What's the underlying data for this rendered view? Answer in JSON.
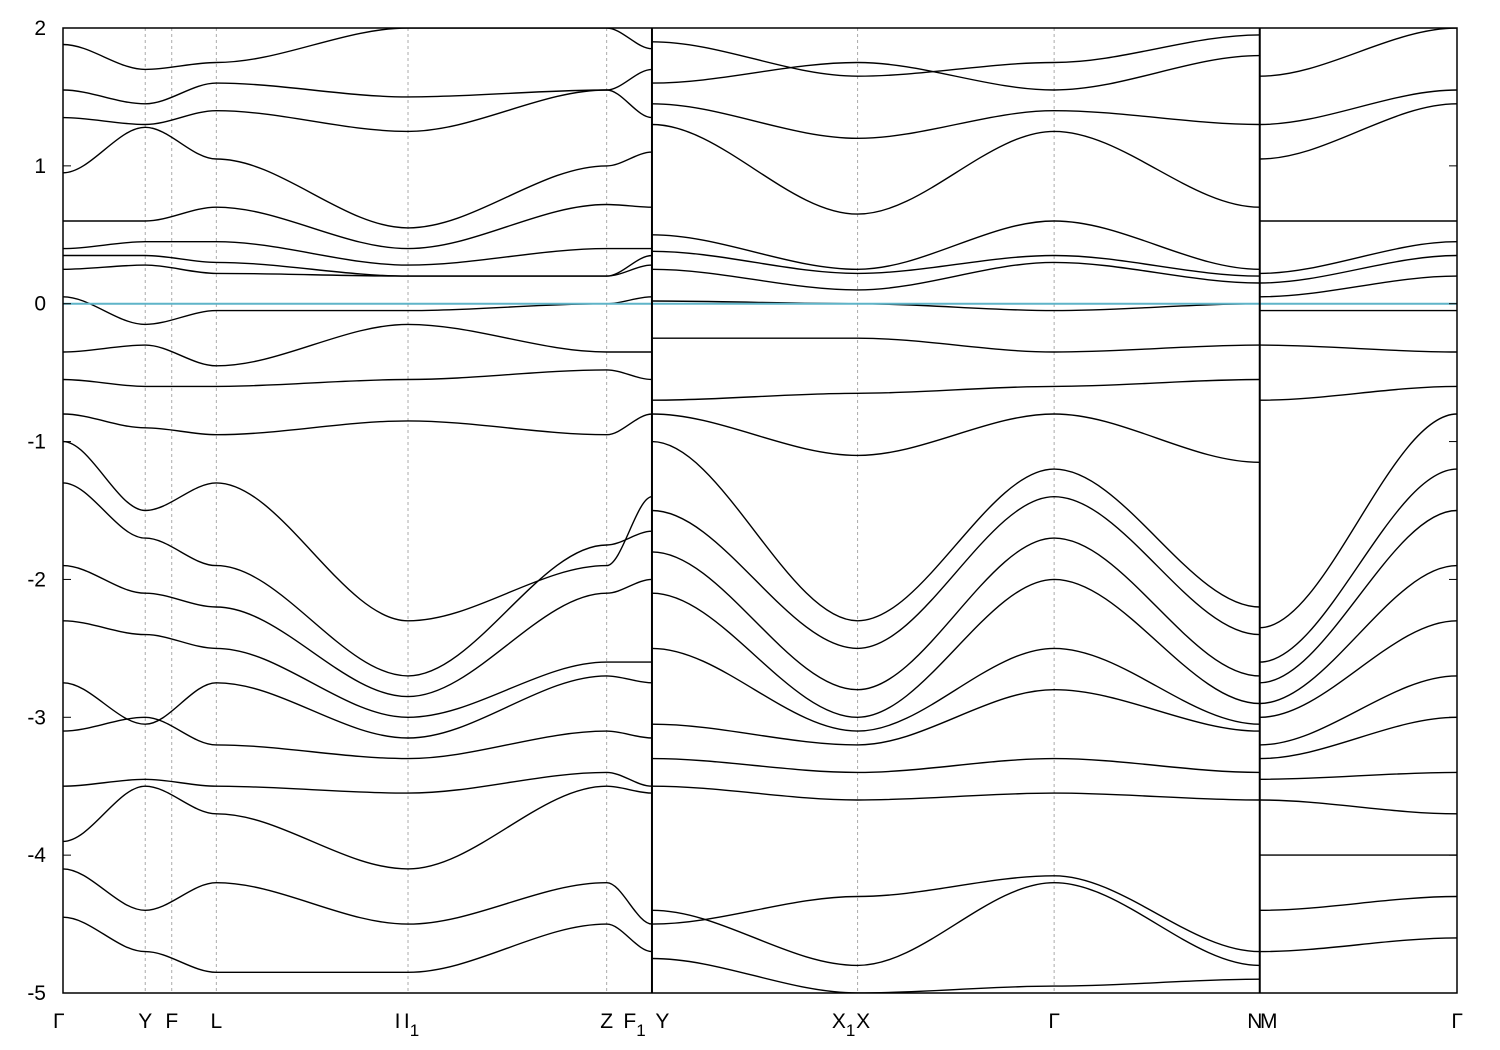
{
  "chart_data": {
    "type": "line",
    "title": "",
    "xlabel": "",
    "ylabel": "",
    "ylim": [
      -5,
      2
    ],
    "yticks": [
      {
        "value": 2,
        "label": "2"
      },
      {
        "value": 1,
        "label": "1"
      },
      {
        "value": 0,
        "label": "0"
      },
      {
        "value": -1,
        "label": "-1"
      },
      {
        "value": -2,
        "label": "-2"
      },
      {
        "value": -3,
        "label": "-3"
      },
      {
        "value": -4,
        "label": "-4"
      },
      {
        "value": -5,
        "label": "-5"
      }
    ],
    "kpath_labels": [
      {
        "label": "Γ",
        "sub": "",
        "k": 0.0
      },
      {
        "label": "Y",
        "sub": "",
        "k": 0.059
      },
      {
        "label": "F",
        "sub": "",
        "k": 0.078
      },
      {
        "label": "L",
        "sub": "",
        "k": 0.11
      },
      {
        "label": "I",
        "sub": "",
        "k": 0.24
      },
      {
        "label": "I",
        "sub": "1",
        "k": 0.25
      },
      {
        "label": "Z",
        "sub": "",
        "k": 0.39
      },
      {
        "label": "F",
        "sub": "1",
        "k": 0.41
      },
      {
        "label": "Y",
        "sub": "",
        "k": 0.43
      },
      {
        "label": "X",
        "sub": "1",
        "k": 0.56
      },
      {
        "label": "X",
        "sub": "",
        "k": 0.574
      },
      {
        "label": "Γ",
        "sub": "",
        "k": 0.711
      },
      {
        "label": "N",
        "sub": "",
        "k": 0.855
      },
      {
        "label": "M",
        "sub": "",
        "k": 0.865
      },
      {
        "label": "Γ",
        "sub": "",
        "k": 1.0
      }
    ],
    "path_breaks_k": [
      0.4225,
      0.8585
    ],
    "grid_k": [
      0.059,
      0.078,
      0.11,
      0.2475,
      0.39,
      0.57,
      0.711
    ],
    "fermi_level": 0,
    "colors": {
      "bands": "#000000",
      "fermi": "#5fb4c8",
      "grid": "#aaaaaa"
    },
    "series": [
      {
        "k": [
          0.0,
          0.059,
          0.11,
          0.2475,
          0.39,
          0.4225
        ],
        "values": [
          1.88,
          1.7,
          1.75,
          2.0,
          2.0,
          1.85
        ]
      },
      {
        "k": [
          0.0,
          0.059,
          0.11,
          0.2475,
          0.39,
          0.4225
        ],
        "values": [
          1.55,
          1.45,
          1.6,
          1.5,
          1.55,
          1.7
        ]
      },
      {
        "k": [
          0.0,
          0.059,
          0.11,
          0.2475,
          0.39,
          0.4225
        ],
        "values": [
          1.35,
          1.3,
          1.4,
          1.25,
          1.55,
          1.35
        ]
      },
      {
        "k": [
          0.0,
          0.059,
          0.11,
          0.2475,
          0.39,
          0.4225
        ],
        "values": [
          0.95,
          1.28,
          1.05,
          0.55,
          1.0,
          1.1
        ]
      },
      {
        "k": [
          0.0,
          0.059,
          0.11,
          0.2475,
          0.39,
          0.4225
        ],
        "values": [
          0.6,
          0.6,
          0.7,
          0.4,
          0.72,
          0.7
        ]
      },
      {
        "k": [
          0.0,
          0.059,
          0.11,
          0.2475,
          0.39,
          0.4225
        ],
        "values": [
          0.4,
          0.45,
          0.45,
          0.28,
          0.4,
          0.4
        ]
      },
      {
        "k": [
          0.0,
          0.059,
          0.11,
          0.2475,
          0.39,
          0.4225
        ],
        "values": [
          0.35,
          0.35,
          0.3,
          0.2,
          0.2,
          0.35
        ]
      },
      {
        "k": [
          0.0,
          0.059,
          0.11,
          0.2475,
          0.39,
          0.4225
        ],
        "values": [
          0.25,
          0.28,
          0.22,
          0.2,
          0.2,
          0.28
        ]
      },
      {
        "k": [
          0.0,
          0.059,
          0.11,
          0.2475,
          0.39,
          0.4225
        ],
        "values": [
          0.05,
          -0.15,
          -0.05,
          -0.05,
          0.0,
          0.05
        ]
      },
      {
        "k": [
          0.0,
          0.059,
          0.11,
          0.2475,
          0.39,
          0.4225
        ],
        "values": [
          -0.35,
          -0.3,
          -0.45,
          -0.15,
          -0.35,
          -0.35
        ]
      },
      {
        "k": [
          0.0,
          0.059,
          0.11,
          0.2475,
          0.39,
          0.4225
        ],
        "values": [
          -0.55,
          -0.6,
          -0.6,
          -0.55,
          -0.48,
          -0.55
        ]
      },
      {
        "k": [
          0.0,
          0.059,
          0.11,
          0.2475,
          0.39,
          0.4225
        ],
        "values": [
          -0.8,
          -0.9,
          -0.95,
          -0.85,
          -0.95,
          -0.8
        ]
      },
      {
        "k": [
          0.0,
          0.059,
          0.11,
          0.2475,
          0.39,
          0.4225
        ],
        "values": [
          -1.0,
          -1.5,
          -1.3,
          -2.3,
          -1.9,
          -1.4
        ]
      },
      {
        "k": [
          0.0,
          0.059,
          0.11,
          0.2475,
          0.39,
          0.4225
        ],
        "values": [
          -1.3,
          -1.7,
          -1.9,
          -2.7,
          -1.75,
          -1.65
        ]
      },
      {
        "k": [
          0.0,
          0.059,
          0.11,
          0.2475,
          0.39,
          0.4225
        ],
        "values": [
          -1.9,
          -2.1,
          -2.2,
          -2.85,
          -2.1,
          -2.0
        ]
      },
      {
        "k": [
          0.0,
          0.059,
          0.11,
          0.2475,
          0.39,
          0.4225
        ],
        "values": [
          -2.3,
          -2.4,
          -2.5,
          -3.0,
          -2.6,
          -2.6
        ]
      },
      {
        "k": [
          0.0,
          0.059,
          0.11,
          0.2475,
          0.39,
          0.4225
        ],
        "values": [
          -2.75,
          -3.05,
          -2.75,
          -3.15,
          -2.7,
          -2.75
        ]
      },
      {
        "k": [
          0.0,
          0.059,
          0.11,
          0.2475,
          0.39,
          0.4225
        ],
        "values": [
          -3.1,
          -3.0,
          -3.2,
          -3.3,
          -3.1,
          -3.15
        ]
      },
      {
        "k": [
          0.0,
          0.059,
          0.11,
          0.2475,
          0.39,
          0.4225
        ],
        "values": [
          -3.5,
          -3.45,
          -3.5,
          -3.55,
          -3.4,
          -3.5
        ]
      },
      {
        "k": [
          0.0,
          0.059,
          0.11,
          0.2475,
          0.39,
          0.4225
        ],
        "values": [
          -3.9,
          -3.5,
          -3.7,
          -4.1,
          -3.5,
          -3.55
        ]
      },
      {
        "k": [
          0.0,
          0.059,
          0.11,
          0.2475,
          0.39,
          0.4225
        ],
        "values": [
          -4.1,
          -4.4,
          -4.2,
          -4.5,
          -4.2,
          -4.5
        ]
      },
      {
        "k": [
          0.0,
          0.059,
          0.11,
          0.2475,
          0.39,
          0.4225
        ],
        "values": [
          -4.45,
          -4.7,
          -4.85,
          -4.85,
          -4.5,
          -4.7
        ]
      },
      {
        "k": [
          0.4225,
          0.57,
          0.711,
          0.8585
        ],
        "values": [
          1.9,
          1.65,
          1.75,
          1.95
        ]
      },
      {
        "k": [
          0.4225,
          0.57,
          0.711,
          0.8585
        ],
        "values": [
          1.6,
          1.75,
          1.55,
          1.8
        ]
      },
      {
        "k": [
          0.4225,
          0.57,
          0.711,
          0.8585
        ],
        "values": [
          1.45,
          1.2,
          1.4,
          1.3
        ]
      },
      {
        "k": [
          0.4225,
          0.57,
          0.711,
          0.8585
        ],
        "values": [
          1.3,
          0.65,
          1.25,
          0.7
        ]
      },
      {
        "k": [
          0.4225,
          0.57,
          0.711,
          0.8585
        ],
        "values": [
          0.5,
          0.25,
          0.6,
          0.25
        ]
      },
      {
        "k": [
          0.4225,
          0.57,
          0.711,
          0.8585
        ],
        "values": [
          0.38,
          0.22,
          0.35,
          0.2
        ]
      },
      {
        "k": [
          0.4225,
          0.57,
          0.711,
          0.8585
        ],
        "values": [
          0.25,
          0.1,
          0.3,
          0.15
        ]
      },
      {
        "k": [
          0.4225,
          0.57,
          0.711,
          0.8585
        ],
        "values": [
          0.02,
          0.0,
          -0.05,
          0.0
        ]
      },
      {
        "k": [
          0.4225,
          0.57,
          0.711,
          0.8585
        ],
        "values": [
          -0.25,
          -0.25,
          -0.35,
          -0.3
        ]
      },
      {
        "k": [
          0.4225,
          0.57,
          0.711,
          0.8585
        ],
        "values": [
          -0.7,
          -0.65,
          -0.6,
          -0.55
        ]
      },
      {
        "k": [
          0.4225,
          0.57,
          0.711,
          0.8585
        ],
        "values": [
          -0.8,
          -1.1,
          -0.8,
          -1.15
        ]
      },
      {
        "k": [
          0.4225,
          0.57,
          0.711,
          0.8585
        ],
        "values": [
          -1.0,
          -2.3,
          -1.2,
          -2.2
        ]
      },
      {
        "k": [
          0.4225,
          0.57,
          0.711,
          0.8585
        ],
        "values": [
          -1.5,
          -2.5,
          -1.4,
          -2.4
        ]
      },
      {
        "k": [
          0.4225,
          0.57,
          0.711,
          0.8585
        ],
        "values": [
          -1.8,
          -2.8,
          -1.7,
          -2.7
        ]
      },
      {
        "k": [
          0.4225,
          0.57,
          0.711,
          0.8585
        ],
        "values": [
          -2.1,
          -3.0,
          -2.0,
          -2.9
        ]
      },
      {
        "k": [
          0.4225,
          0.57,
          0.711,
          0.8585
        ],
        "values": [
          -2.5,
          -3.1,
          -2.5,
          -3.05
        ]
      },
      {
        "k": [
          0.4225,
          0.57,
          0.711,
          0.8585
        ],
        "values": [
          -3.05,
          -3.2,
          -2.8,
          -3.1
        ]
      },
      {
        "k": [
          0.4225,
          0.57,
          0.711,
          0.8585
        ],
        "values": [
          -3.3,
          -3.4,
          -3.3,
          -3.4
        ]
      },
      {
        "k": [
          0.4225,
          0.57,
          0.711,
          0.8585
        ],
        "values": [
          -3.5,
          -3.6,
          -3.55,
          -3.6
        ]
      },
      {
        "k": [
          0.4225,
          0.57,
          0.711,
          0.8585
        ],
        "values": [
          -4.5,
          -4.3,
          -4.15,
          -4.7
        ]
      },
      {
        "k": [
          0.4225,
          0.57,
          0.711,
          0.8585
        ],
        "values": [
          -4.4,
          -4.8,
          -4.2,
          -4.8
        ]
      },
      {
        "k": [
          0.4225,
          0.57,
          0.711,
          0.8585
        ],
        "values": [
          -4.75,
          -5.0,
          -4.95,
          -4.9
        ]
      },
      {
        "k": [
          0.8585,
          1.0
        ],
        "values": [
          1.65,
          2.0
        ]
      },
      {
        "k": [
          0.8585,
          1.0
        ],
        "values": [
          1.3,
          1.55
        ]
      },
      {
        "k": [
          0.8585,
          1.0
        ],
        "values": [
          1.05,
          1.45
        ]
      },
      {
        "k": [
          0.8585,
          1.0
        ],
        "values": [
          0.6,
          0.6
        ]
      },
      {
        "k": [
          0.8585,
          1.0
        ],
        "values": [
          0.22,
          0.45
        ]
      },
      {
        "k": [
          0.8585,
          1.0
        ],
        "values": [
          0.15,
          0.35
        ]
      },
      {
        "k": [
          0.8585,
          1.0
        ],
        "values": [
          0.05,
          0.2
        ]
      },
      {
        "k": [
          0.8585,
          1.0
        ],
        "values": [
          -0.05,
          -0.05
        ]
      },
      {
        "k": [
          0.8585,
          1.0
        ],
        "values": [
          -0.3,
          -0.35
        ]
      },
      {
        "k": [
          0.8585,
          1.0
        ],
        "values": [
          -0.7,
          -0.6
        ]
      },
      {
        "k": [
          0.8585,
          1.0
        ],
        "values": [
          -2.35,
          -0.8
        ]
      },
      {
        "k": [
          0.8585,
          1.0
        ],
        "values": [
          -2.6,
          -1.2
        ]
      },
      {
        "k": [
          0.8585,
          1.0
        ],
        "values": [
          -2.75,
          -1.5
        ]
      },
      {
        "k": [
          0.8585,
          1.0
        ],
        "values": [
          -2.9,
          -1.9
        ]
      },
      {
        "k": [
          0.8585,
          1.0
        ],
        "values": [
          -3.0,
          -2.3
        ]
      },
      {
        "k": [
          0.8585,
          1.0
        ],
        "values": [
          -3.2,
          -2.7
        ]
      },
      {
        "k": [
          0.8585,
          1.0
        ],
        "values": [
          -3.3,
          -3.0
        ]
      },
      {
        "k": [
          0.8585,
          1.0
        ],
        "values": [
          -3.45,
          -3.4
        ]
      },
      {
        "k": [
          0.8585,
          1.0
        ],
        "values": [
          -3.6,
          -3.7
        ]
      },
      {
        "k": [
          0.8585,
          1.0
        ],
        "values": [
          -4.0,
          -4.0
        ]
      },
      {
        "k": [
          0.8585,
          1.0
        ],
        "values": [
          -4.4,
          -4.3
        ]
      },
      {
        "k": [
          0.8585,
          1.0
        ],
        "values": [
          -4.7,
          -4.6
        ]
      }
    ]
  }
}
